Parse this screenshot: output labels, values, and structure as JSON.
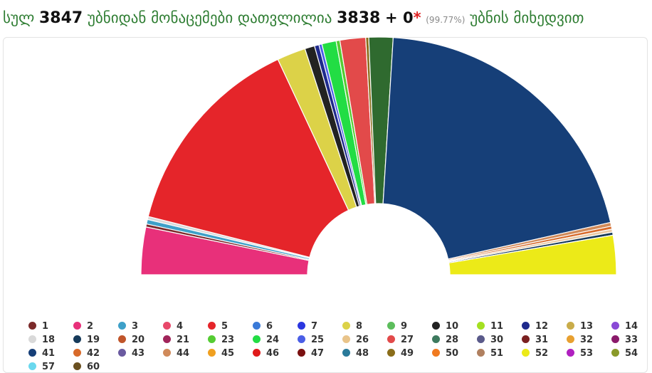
{
  "header": {
    "t1": "სულ",
    "total": "3847",
    "t2": "უბნიდან მონაცემები დათვლილია",
    "counted": "3838",
    "plus": "+ 0",
    "star": "*",
    "percent": "(99.77%)",
    "t3": "უბნის მიხედვით"
  },
  "chart_data": {
    "type": "pie",
    "variant": "semicircle-donut",
    "slices_order": "clockwise from left",
    "series": [
      {
        "name": "2",
        "value": 6.3,
        "color": "#e8307a"
      },
      {
        "name": "1",
        "value": 0.4,
        "color": "#7b2a2a"
      },
      {
        "name": "3",
        "value": 0.6,
        "color": "#3ea0c8"
      },
      {
        "name": "18",
        "value": 0.4,
        "color": "#d9d9d9"
      },
      {
        "name": "5",
        "value": 27.5,
        "color": "#e5252a"
      },
      {
        "name": "8",
        "value": 3.8,
        "color": "#dcd248"
      },
      {
        "name": "10",
        "value": 1.3,
        "color": "#222222"
      },
      {
        "name": "12",
        "value": 0.6,
        "color": "#1f2a8c"
      },
      {
        "name": "25",
        "value": 0.4,
        "color": "#4a5ee6"
      },
      {
        "name": "24",
        "value": 1.9,
        "color": "#22dd44"
      },
      {
        "name": "23",
        "value": 0.5,
        "color": "#55cc33"
      },
      {
        "name": "27",
        "value": 3.4,
        "color": "#e24a4a"
      },
      {
        "name": "49",
        "value": 0.4,
        "color": "#8a6d1a"
      },
      {
        "name": "28",
        "value": 3.2,
        "color": "#2f6a2f"
      },
      {
        "name": "41",
        "value": 40.0,
        "color": "#163f78"
      },
      {
        "name": "44",
        "value": 0.5,
        "color": "#d08a5a"
      },
      {
        "name": "42",
        "value": 0.4,
        "color": "#d86a2a"
      },
      {
        "name": "13",
        "value": 0.4,
        "color": "#e9c9a5"
      },
      {
        "name": "19",
        "value": 0.4,
        "color": "#163a5a"
      },
      {
        "name": "52",
        "value": 5.2,
        "color": "#ecea18"
      }
    ]
  },
  "legend": [
    {
      "label": "1",
      "color": "#7b2a2a"
    },
    {
      "label": "2",
      "color": "#e8307a"
    },
    {
      "label": "3",
      "color": "#3ea0c8"
    },
    {
      "label": "4",
      "color": "#e8486a"
    },
    {
      "label": "5",
      "color": "#e5252a"
    },
    {
      "label": "6",
      "color": "#3a7ad8"
    },
    {
      "label": "7",
      "color": "#2a36e0"
    },
    {
      "label": "8",
      "color": "#dcd248"
    },
    {
      "label": "9",
      "color": "#5cbd5c"
    },
    {
      "label": "10",
      "color": "#222222"
    },
    {
      "label": "11",
      "color": "#a4e021"
    },
    {
      "label": "12",
      "color": "#1f2a8c"
    },
    {
      "label": "13",
      "color": "#c9ac4a"
    },
    {
      "label": "14",
      "color": "#8a4ad6"
    },
    {
      "label": "18",
      "color": "#d9d9d9"
    },
    {
      "label": "19",
      "color": "#163a5a"
    },
    {
      "label": "20",
      "color": "#c0552a"
    },
    {
      "label": "21",
      "color": "#a0245a"
    },
    {
      "label": "23",
      "color": "#55cc33"
    },
    {
      "label": "24",
      "color": "#22dd44"
    },
    {
      "label": "25",
      "color": "#4a5ee6"
    },
    {
      "label": "26",
      "color": "#e9c48a"
    },
    {
      "label": "27",
      "color": "#e24a4a"
    },
    {
      "label": "28",
      "color": "#3d7a5e"
    },
    {
      "label": "30",
      "color": "#5a5a8a"
    },
    {
      "label": "31",
      "color": "#7a2020"
    },
    {
      "label": "32",
      "color": "#e8a030"
    },
    {
      "label": "33",
      "color": "#8a1a6a"
    },
    {
      "label": "41",
      "color": "#163f78"
    },
    {
      "label": "42",
      "color": "#d86a2a"
    },
    {
      "label": "43",
      "color": "#6a5aa0"
    },
    {
      "label": "44",
      "color": "#d08a5a"
    },
    {
      "label": "45",
      "color": "#f0a020"
    },
    {
      "label": "46",
      "color": "#e01a1a"
    },
    {
      "label": "47",
      "color": "#7a1010"
    },
    {
      "label": "48",
      "color": "#2a7a9a"
    },
    {
      "label": "49",
      "color": "#8a6d1a"
    },
    {
      "label": "50",
      "color": "#f07a20"
    },
    {
      "label": "51",
      "color": "#b08060"
    },
    {
      "label": "52",
      "color": "#ecea18"
    },
    {
      "label": "53",
      "color": "#b020c0"
    },
    {
      "label": "54",
      "color": "#8a9a2a"
    },
    {
      "label": "57",
      "color": "#6ad8ee"
    },
    {
      "label": "60",
      "color": "#6a5020"
    }
  ]
}
